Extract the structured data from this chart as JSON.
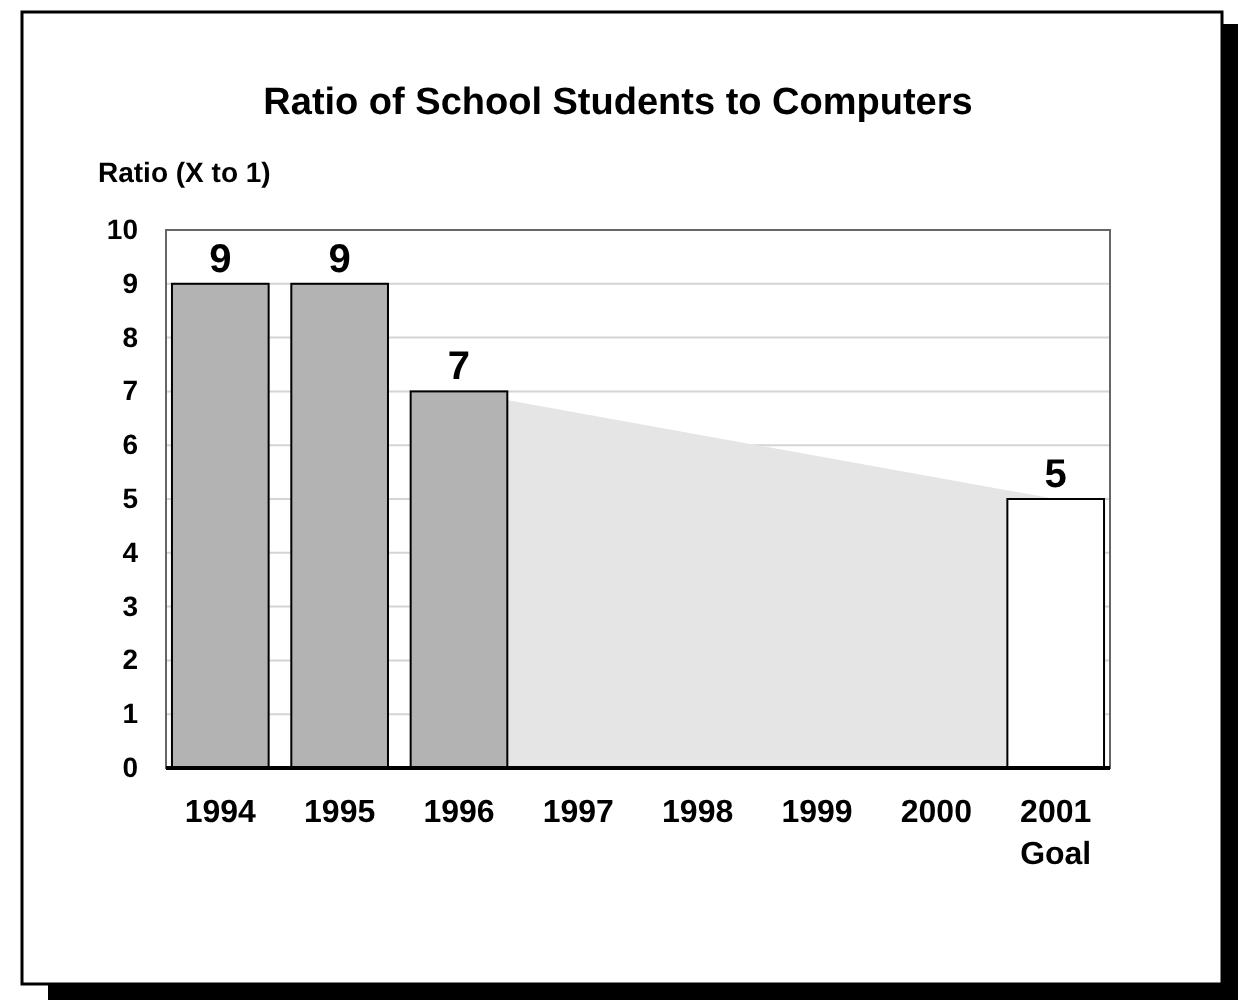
{
  "chart_data": {
    "type": "bar",
    "title": "Ratio of School Students to Computers",
    "ylabel": "Ratio (X to 1)",
    "categories": [
      "1994",
      "1995",
      "1996",
      "1997",
      "1998",
      "1999",
      "2000",
      "2001\nGoal"
    ],
    "series": [
      {
        "colors": [
          "#b3b3b3",
          "#b3b3b3",
          "#b3b3b3",
          null,
          null,
          null,
          null,
          "#ffffff"
        ],
        "values": [
          9,
          9,
          7,
          null,
          null,
          null,
          null,
          5
        ],
        "value_labels": [
          "9",
          "9",
          "7",
          null,
          null,
          null,
          null,
          "5"
        ]
      },
      {
        "type": "area",
        "color": "#e5e5e5",
        "values": [
          null,
          null,
          7,
          null,
          null,
          null,
          null,
          5
        ]
      }
    ],
    "ylim": [
      0,
      10
    ],
    "yticks": [
      0,
      1,
      2,
      3,
      4,
      5,
      6,
      7,
      8,
      9,
      10
    ],
    "grid": "y"
  }
}
